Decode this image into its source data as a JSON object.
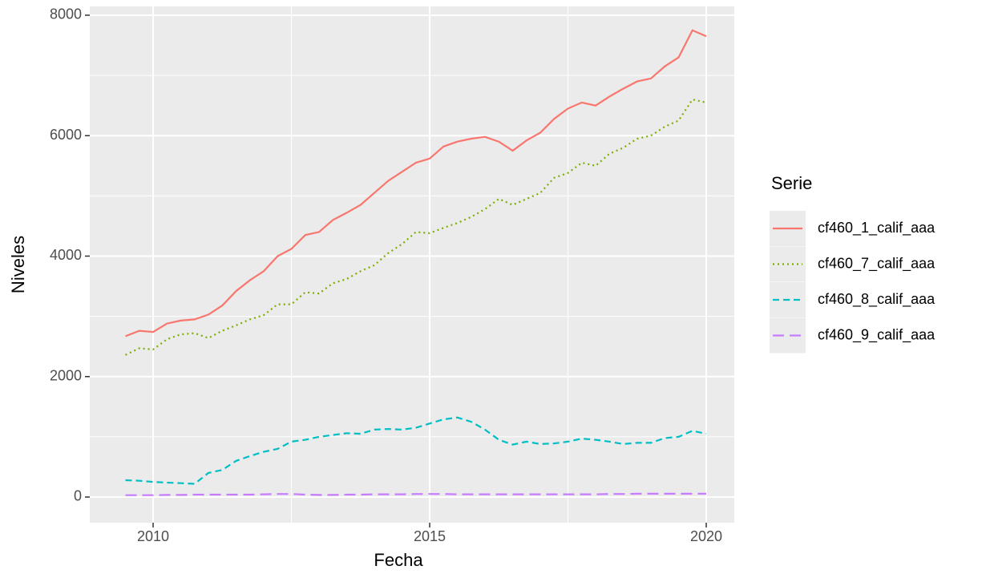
{
  "chart_data": {
    "type": "line",
    "x_label": "Fecha",
    "y_label": "Niveles",
    "legend_title": "Serie",
    "x": [
      2009.5,
      2009.75,
      2010,
      2010.25,
      2010.5,
      2010.75,
      2011,
      2011.25,
      2011.5,
      2011.75,
      2012,
      2012.25,
      2012.5,
      2012.75,
      2013,
      2013.25,
      2013.5,
      2013.75,
      2014,
      2014.25,
      2014.5,
      2014.75,
      2015,
      2015.25,
      2015.5,
      2015.75,
      2016,
      2016.25,
      2016.5,
      2016.75,
      2017,
      2017.25,
      2017.5,
      2017.75,
      2018,
      2018.25,
      2018.5,
      2018.75,
      2019,
      2019.25,
      2019.5,
      2019.75,
      2020
    ],
    "series": [
      {
        "name": "cf460_1_calif_aaa",
        "color": "#F8766D",
        "linetype": "solid",
        "values": [
          2670,
          2760,
          2740,
          2880,
          2930,
          2950,
          3030,
          3180,
          3420,
          3600,
          3750,
          4000,
          4120,
          4350,
          4400,
          4600,
          4720,
          4850,
          5050,
          5250,
          5400,
          5550,
          5620,
          5820,
          5900,
          5950,
          5980,
          5900,
          5750,
          5920,
          6050,
          6280,
          6450,
          6550,
          6500,
          6650,
          6780,
          6900,
          6950,
          7150,
          7300,
          7750,
          7650
        ]
      },
      {
        "name": "cf460_7_calif_aaa",
        "color": "#7CAE00",
        "linetype": "dotted",
        "values": [
          2360,
          2470,
          2450,
          2620,
          2700,
          2720,
          2640,
          2760,
          2850,
          2950,
          3020,
          3200,
          3200,
          3400,
          3380,
          3550,
          3620,
          3750,
          3850,
          4050,
          4200,
          4400,
          4380,
          4470,
          4550,
          4650,
          4780,
          4950,
          4850,
          4950,
          5050,
          5300,
          5380,
          5550,
          5500,
          5700,
          5800,
          5950,
          6000,
          6150,
          6250,
          6600,
          6550
        ]
      },
      {
        "name": "cf460_8_calif_aaa",
        "color": "#00BFC4",
        "linetype": "dashed",
        "values": [
          280,
          270,
          250,
          240,
          230,
          220,
          400,
          450,
          600,
          680,
          750,
          800,
          920,
          950,
          1000,
          1030,
          1060,
          1050,
          1120,
          1130,
          1120,
          1150,
          1220,
          1290,
          1320,
          1250,
          1120,
          950,
          870,
          920,
          880,
          890,
          920,
          970,
          950,
          920,
          880,
          900,
          900,
          980,
          1000,
          1100,
          1050
        ]
      },
      {
        "name": "cf460_9_calif_aaa",
        "color": "#C77CFF",
        "linetype": "longdash",
        "values": [
          30,
          30,
          30,
          35,
          35,
          40,
          40,
          40,
          40,
          40,
          45,
          50,
          50,
          40,
          35,
          35,
          40,
          40,
          45,
          45,
          45,
          50,
          50,
          50,
          45,
          45,
          45,
          45,
          45,
          45,
          45,
          45,
          45,
          45,
          45,
          50,
          50,
          55,
          55,
          55,
          55,
          55,
          55
        ]
      }
    ],
    "xlim": [
      2008.855,
      2020.507
    ],
    "xticks": [
      2010,
      2015,
      2020
    ],
    "xminor": [
      2012.5,
      2017.5
    ],
    "ylim": [
      -426,
      8146
    ],
    "yticks": [
      0,
      2000,
      4000,
      6000,
      8000
    ],
    "yminor": [
      1000,
      3000,
      5000,
      7000
    ],
    "grid": true
  }
}
